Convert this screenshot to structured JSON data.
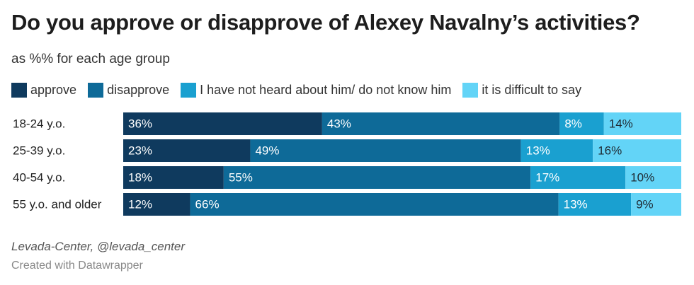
{
  "chart_data": {
    "type": "stacked-bar",
    "title": "Do you approve or disapprove of Alexey Navalny’s activities?",
    "subtitle": "as %% for each age group",
    "categories": [
      "18-24 y.o.",
      "25-39 y.o.",
      "40-54 y.o.",
      "55 y.o. and older"
    ],
    "series": [
      {
        "name": "approve",
        "color": "#0f3a5e",
        "label_color": "#ffffff",
        "values": [
          36,
          23,
          18,
          12
        ],
        "value_labels": [
          "36%",
          "23%",
          "18%",
          "12%"
        ]
      },
      {
        "name": "disapprove",
        "color": "#0e6a98",
        "label_color": "#ffffff",
        "values": [
          43,
          49,
          55,
          66
        ],
        "value_labels": [
          "43%",
          "49%",
          "55%",
          "66%"
        ]
      },
      {
        "name": "I have not heard about him/ do not know him",
        "color": "#1aa0d0",
        "label_color": "#ffffff",
        "values": [
          8,
          13,
          17,
          13
        ],
        "value_labels": [
          "8%",
          "13%",
          "17%",
          "13%"
        ]
      },
      {
        "name": "it is difficult to say",
        "color": "#63d4f7",
        "label_color": "#1e2a33",
        "values": [
          14,
          16,
          10,
          9
        ],
        "value_labels": [
          "14%",
          "16%",
          "10%",
          "9%"
        ]
      }
    ],
    "source": "Levada-Center, @levada_center",
    "credit": "Created with Datawrapper"
  }
}
